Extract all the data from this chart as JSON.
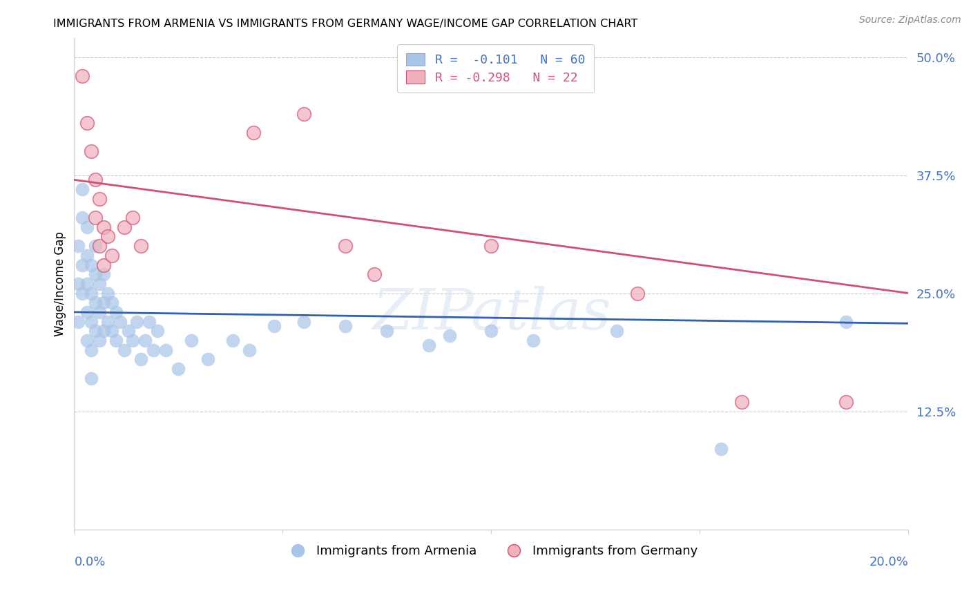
{
  "title": "IMMIGRANTS FROM ARMENIA VS IMMIGRANTS FROM GERMANY WAGE/INCOME GAP CORRELATION CHART",
  "source": "Source: ZipAtlas.com",
  "ylabel": "Wage/Income Gap",
  "yticks": [
    0.0,
    0.125,
    0.25,
    0.375,
    0.5
  ],
  "ytick_labels": [
    "",
    "12.5%",
    "25.0%",
    "37.5%",
    "50.0%"
  ],
  "xlim": [
    0.0,
    0.2
  ],
  "ylim": [
    0.0,
    0.52
  ],
  "blue_color": "#a8c4e8",
  "pink_color": "#f0b0bc",
  "blue_line_color": "#3060b0",
  "pink_line_color": "#d05070",
  "text_blue": "#4472c4",
  "text_pink": "#d05878",
  "watermark": "ZIPatlas",
  "blue_intercept": 0.23,
  "blue_slope": -0.06,
  "pink_intercept": 0.37,
  "pink_slope": -0.6,
  "armenia_x": [
    0.001,
    0.001,
    0.001,
    0.002,
    0.002,
    0.002,
    0.002,
    0.003,
    0.003,
    0.003,
    0.003,
    0.003,
    0.004,
    0.004,
    0.004,
    0.004,
    0.004,
    0.005,
    0.005,
    0.005,
    0.005,
    0.006,
    0.006,
    0.006,
    0.007,
    0.007,
    0.007,
    0.008,
    0.008,
    0.009,
    0.009,
    0.01,
    0.01,
    0.011,
    0.012,
    0.013,
    0.014,
    0.015,
    0.016,
    0.017,
    0.018,
    0.019,
    0.02,
    0.022,
    0.025,
    0.028,
    0.032,
    0.038,
    0.042,
    0.048,
    0.055,
    0.065,
    0.075,
    0.085,
    0.09,
    0.1,
    0.11,
    0.13,
    0.155,
    0.185
  ],
  "armenia_y": [
    0.3,
    0.26,
    0.22,
    0.36,
    0.33,
    0.28,
    0.25,
    0.32,
    0.29,
    0.26,
    0.23,
    0.2,
    0.28,
    0.25,
    0.22,
    0.19,
    0.16,
    0.3,
    0.27,
    0.24,
    0.21,
    0.26,
    0.23,
    0.2,
    0.27,
    0.24,
    0.21,
    0.25,
    0.22,
    0.24,
    0.21,
    0.23,
    0.2,
    0.22,
    0.19,
    0.21,
    0.2,
    0.22,
    0.18,
    0.2,
    0.22,
    0.19,
    0.21,
    0.19,
    0.17,
    0.2,
    0.18,
    0.2,
    0.19,
    0.215,
    0.22,
    0.215,
    0.21,
    0.195,
    0.205,
    0.21,
    0.2,
    0.21,
    0.085,
    0.22
  ],
  "germany_x": [
    0.002,
    0.003,
    0.004,
    0.005,
    0.005,
    0.006,
    0.006,
    0.007,
    0.007,
    0.008,
    0.009,
    0.012,
    0.014,
    0.016,
    0.043,
    0.055,
    0.065,
    0.072,
    0.1,
    0.135,
    0.16,
    0.185
  ],
  "germany_y": [
    0.48,
    0.43,
    0.4,
    0.37,
    0.33,
    0.35,
    0.3,
    0.32,
    0.28,
    0.31,
    0.29,
    0.32,
    0.33,
    0.3,
    0.42,
    0.44,
    0.3,
    0.27,
    0.3,
    0.25,
    0.135,
    0.135
  ]
}
